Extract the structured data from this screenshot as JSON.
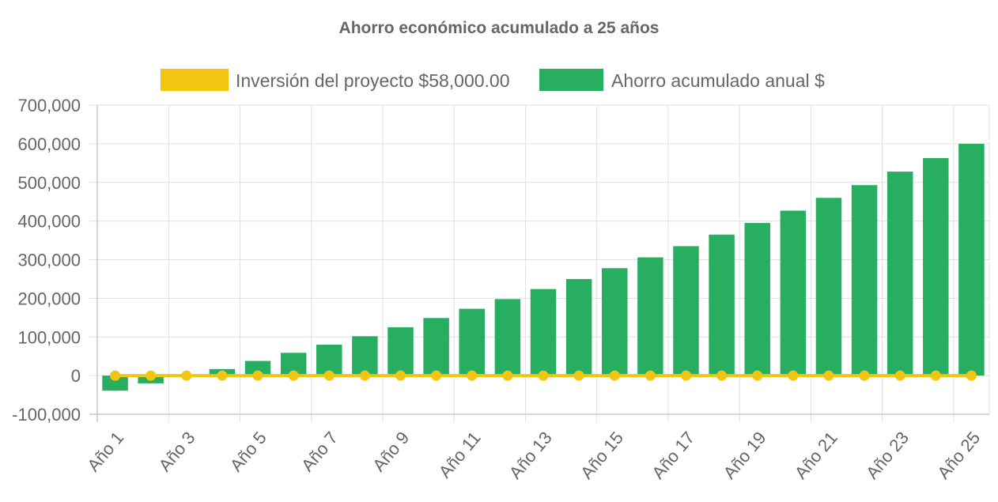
{
  "chart_data": {
    "type": "bar",
    "title": "Ahorro económico acumulado a 25 años",
    "legend_position": "top",
    "grid": true,
    "ylim": [
      -100000,
      700000
    ],
    "yticks": [
      700000,
      600000,
      500000,
      400000,
      300000,
      200000,
      100000,
      0,
      -100000
    ],
    "ytick_labels": [
      "700,000",
      "600,000",
      "500,000",
      "400,000",
      "300,000",
      "200,000",
      "100,000",
      "0",
      "-100,000"
    ],
    "categories": [
      "Año 1",
      "Año 2",
      "Año 3",
      "Año 4",
      "Año 5",
      "Año 6",
      "Año 7",
      "Año 8",
      "Año 9",
      "Año 10",
      "Año 11",
      "Año 12",
      "Año 13",
      "Año 14",
      "Año 15",
      "Año 16",
      "Año 17",
      "Año 18",
      "Año 19",
      "Año 20",
      "Año 21",
      "Año 22",
      "Año 23",
      "Año 24",
      "Año 25"
    ],
    "xtick_labels_shown": [
      "Año 1",
      "Año 3",
      "Año 5",
      "Año 7",
      "Año 9",
      "Año 11",
      "Año 13",
      "Año 15",
      "Año 17",
      "Año 19",
      "Año 21",
      "Año 23",
      "Año 25"
    ],
    "series": [
      {
        "name": "Inversión del proyecto $58,000.00",
        "kind": "line",
        "color": "#F2C511",
        "values": [
          0,
          0,
          0,
          0,
          0,
          0,
          0,
          0,
          0,
          0,
          0,
          0,
          0,
          0,
          0,
          0,
          0,
          0,
          0,
          0,
          0,
          0,
          0,
          0,
          0
        ]
      },
      {
        "name": "Ahorro acumulado anual $",
        "kind": "bar",
        "color": "#27AE60",
        "values": [
          -39000,
          -20000,
          -1000,
          17000,
          38000,
          59000,
          80000,
          102000,
          125000,
          149000,
          173000,
          198000,
          224000,
          250000,
          278000,
          306000,
          335000,
          365000,
          395000,
          427000,
          460000,
          493000,
          528000,
          563000,
          600000
        ]
      }
    ]
  }
}
